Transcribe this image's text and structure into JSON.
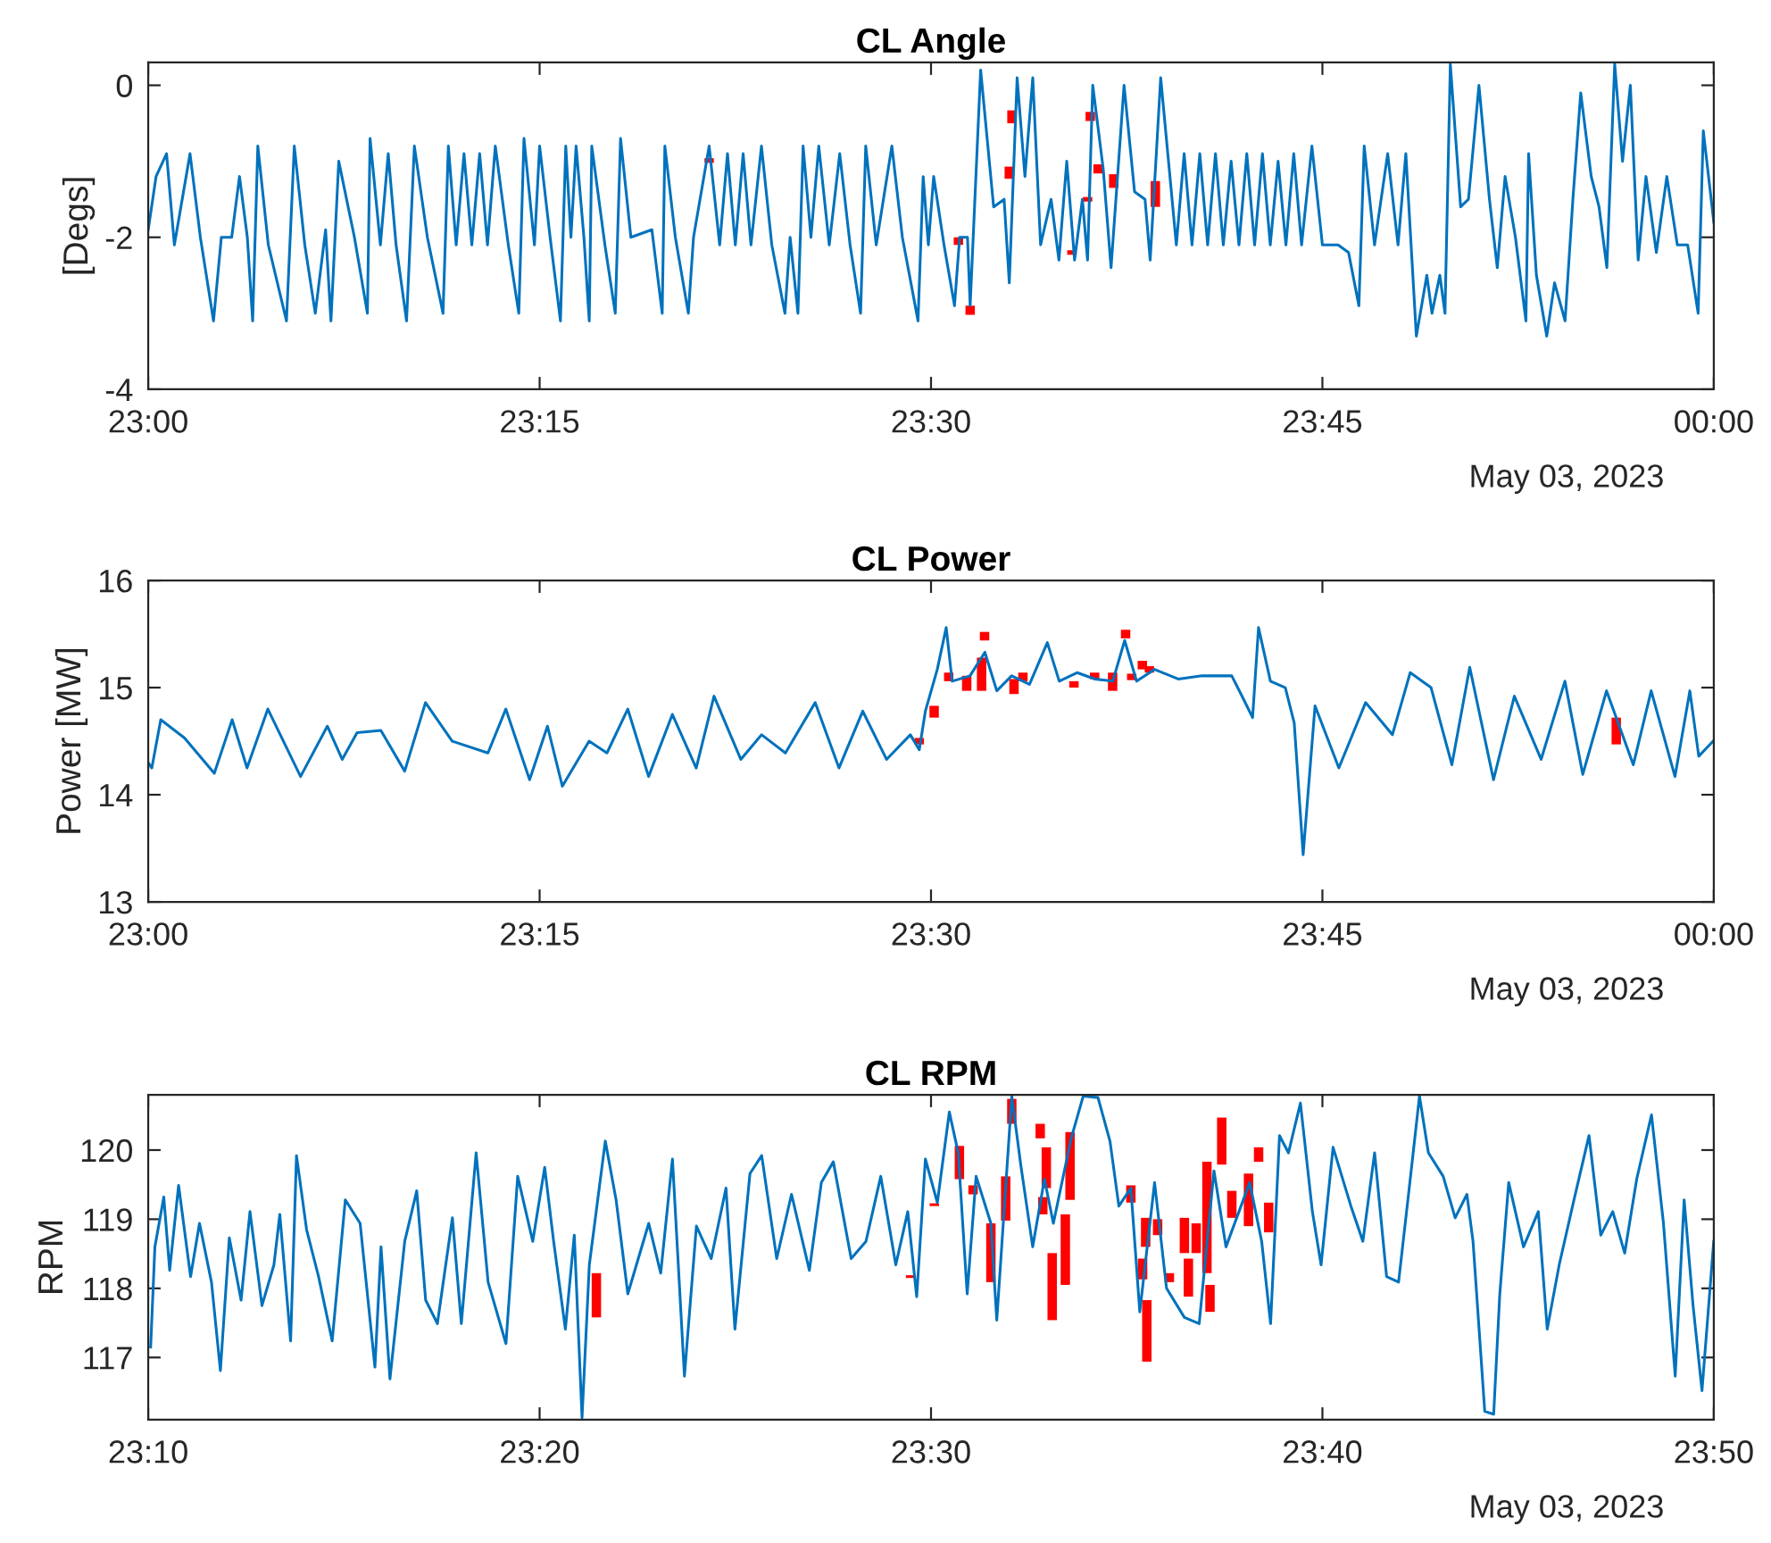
{
  "chart_data": [
    {
      "type": "line",
      "title": "CL Angle",
      "ylabel": "[Degs]",
      "annotations": [
        "May 03, 2023"
      ],
      "xlim": [
        23,
        24
      ],
      "ylim": [
        -4,
        0.3
      ],
      "xticks": [
        {
          "value": 23,
          "label": "23:00"
        },
        {
          "value": 23.25,
          "label": "23:15"
        },
        {
          "value": 23.5,
          "label": "23:30"
        },
        {
          "value": 23.75,
          "label": "23:45"
        },
        {
          "value": 24,
          "label": "00:00"
        }
      ],
      "yticks": [
        -4,
        -2,
        0
      ],
      "series": [
        {
          "color": "#0072bd",
          "x": [
            23.0,
            23.005,
            23.0117,
            23.0167,
            23.0267,
            23.0333,
            23.0417,
            23.0467,
            23.0533,
            23.0583,
            23.0633,
            23.0667,
            23.07,
            23.0767,
            23.0883,
            23.0933,
            23.1,
            23.1067,
            23.1133,
            23.1167,
            23.1217,
            23.1317,
            23.14,
            23.1417,
            23.1483,
            23.1533,
            23.1583,
            23.165,
            23.17,
            23.1783,
            23.1883,
            23.1917,
            23.1967,
            23.2017,
            23.2067,
            23.2117,
            23.2167,
            23.2217,
            23.23,
            23.2367,
            23.24,
            23.2467,
            23.25,
            23.2567,
            23.2633,
            23.2667,
            23.27,
            23.2733,
            23.2783,
            23.2817,
            23.2833,
            23.2917,
            23.2983,
            23.3017,
            23.3083,
            23.3217,
            23.3283,
            23.33,
            23.3367,
            23.345,
            23.3483,
            23.3583,
            23.365,
            23.37,
            23.375,
            23.38,
            23.385,
            23.3917,
            23.3983,
            23.4067,
            23.41,
            23.415,
            23.4183,
            23.4233,
            23.4283,
            23.435,
            23.4417,
            23.4483,
            23.455,
            23.4583,
            23.465,
            23.475,
            23.4817,
            23.4917,
            23.495,
            23.4983,
            23.5017,
            23.5083,
            23.515,
            23.5183,
            23.5233,
            23.525,
            23.5317,
            23.54,
            23.5467,
            23.55,
            23.555,
            23.56,
            23.565,
            23.57,
            23.5767,
            23.5817,
            23.5867,
            23.5917,
            23.5967,
            23.6,
            23.6033,
            23.61,
            23.615,
            23.6233,
            23.63,
            23.6367,
            23.64,
            23.6467,
            23.6517,
            23.6567,
            23.6617,
            23.6667,
            23.6717,
            23.6767,
            23.6817,
            23.6867,
            23.6917,
            23.6967,
            23.7017,
            23.7067,
            23.7117,
            23.7167,
            23.7217,
            23.7267,
            23.7317,
            23.7367,
            23.7433,
            23.75,
            23.76,
            23.7667,
            23.7733,
            23.7767,
            23.7833,
            23.7917,
            23.7983,
            23.8033,
            23.81,
            23.8167,
            23.82,
            23.825,
            23.8283,
            23.8317,
            23.8383,
            23.8433,
            23.85,
            23.8567,
            23.8617,
            23.8667,
            23.8733,
            23.88,
            23.8817,
            23.8867,
            23.8933,
            23.8983,
            23.905,
            23.91,
            23.915,
            23.9217,
            23.9267,
            23.9317,
            23.9367,
            23.9417,
            23.9467,
            23.9517,
            23.9567,
            23.9633,
            23.97,
            23.9767,
            23.9833,
            23.99,
            23.9933,
            24.0
          ],
          "values": [
            -1.9,
            -1.2,
            -0.9,
            -2.1,
            -0.9,
            -2.0,
            -3.1,
            -2.0,
            -2.0,
            -1.2,
            -2.0,
            -3.1,
            -0.8,
            -2.1,
            -3.1,
            -0.8,
            -2.1,
            -3.0,
            -1.9,
            -3.1,
            -1.0,
            -2.0,
            -3.0,
            -0.7,
            -2.1,
            -0.9,
            -2.1,
            -3.1,
            -0.8,
            -2.0,
            -3.0,
            -0.8,
            -2.1,
            -0.9,
            -2.1,
            -0.9,
            -2.1,
            -0.8,
            -2.1,
            -3.0,
            -0.7,
            -2.1,
            -0.8,
            -2.0,
            -3.1,
            -0.8,
            -2.0,
            -0.8,
            -2.0,
            -3.1,
            -0.8,
            -2.1,
            -3.0,
            -0.7,
            -2.0,
            -1.9,
            -3.0,
            -0.8,
            -2.0,
            -3.0,
            -2.0,
            -0.8,
            -2.1,
            -0.9,
            -2.1,
            -0.9,
            -2.1,
            -0.8,
            -2.1,
            -3.0,
            -2.0,
            -3.0,
            -0.8,
            -2.0,
            -0.8,
            -2.1,
            -0.9,
            -2.1,
            -3.0,
            -0.8,
            -2.1,
            -0.8,
            -2.0,
            -3.1,
            -1.2,
            -2.1,
            -1.2,
            -2.1,
            -2.9,
            -2.0,
            -2.0,
            -2.9,
            0.2,
            -1.6,
            -1.5,
            -2.6,
            0.1,
            -1.2,
            0.1,
            -2.1,
            -1.5,
            -2.3,
            -1.0,
            -2.3,
            -1.5,
            -2.3,
            0.0,
            -1.1,
            -2.4,
            0.0,
            -1.4,
            -1.5,
            -2.3,
            0.1,
            -1.0,
            -2.1,
            -0.9,
            -2.1,
            -0.9,
            -2.1,
            -0.9,
            -2.1,
            -1.0,
            -2.1,
            -0.9,
            -2.1,
            -0.9,
            -2.1,
            -1.0,
            -2.1,
            -0.9,
            -2.1,
            -0.8,
            -2.1,
            -2.1,
            -2.2,
            -2.9,
            -0.8,
            -2.1,
            -0.9,
            -2.1,
            -0.9,
            -3.3,
            -2.5,
            -3.0,
            -2.5,
            -3.0,
            0.28,
            -1.6,
            -1.5,
            0.0,
            -1.5,
            -2.4,
            -1.2,
            -2.0,
            -3.1,
            -0.9,
            -2.5,
            -3.3,
            -2.6,
            -3.1,
            -1.5,
            -0.1,
            -1.2,
            -1.6,
            -2.4,
            0.28,
            -1.0,
            0.0,
            -2.3,
            -1.2,
            -2.2,
            -1.2,
            -2.1,
            -2.1,
            -3.0,
            -0.6,
            -1.8
          ]
        },
        {
          "type": "bar",
          "color": "#ff0000",
          "x": [
            23.3583,
            23.5175,
            23.525,
            23.55,
            23.5517,
            23.59,
            23.6,
            23.6017,
            23.6067,
            23.6167,
            23.6433
          ],
          "base": [
            -1.02,
            -2.1,
            -3.02,
            -1.23,
            -0.5,
            -2.23,
            -1.53,
            -0.47,
            -1.16,
            -1.35,
            -1.6
          ],
          "values": [
            0.06,
            0.1,
            0.12,
            0.16,
            0.17,
            0.06,
            0.06,
            0.12,
            0.12,
            0.18,
            0.34
          ]
        }
      ]
    },
    {
      "type": "line",
      "title": "CL Power",
      "ylabel": "Power [MW]",
      "annotations": [
        "May 03, 2023"
      ],
      "xlim": [
        23,
        24
      ],
      "ylim": [
        13,
        16
      ],
      "xticks": [
        {
          "value": 23,
          "label": "23:00"
        },
        {
          "value": 23.25,
          "label": "23:15"
        },
        {
          "value": 23.5,
          "label": "23:30"
        },
        {
          "value": 23.75,
          "label": "23:45"
        },
        {
          "value": 24,
          "label": "00:00"
        }
      ],
      "yticks": [
        13,
        14,
        15,
        16
      ],
      "series": [
        {
          "color": "#0072bd",
          "x": [
            23.0,
            23.0023,
            23.008,
            23.0232,
            23.0422,
            23.0536,
            23.0631,
            23.0764,
            23.0973,
            23.1144,
            23.1239,
            23.1334,
            23.1486,
            23.1638,
            23.1771,
            23.1942,
            23.217,
            23.2284,
            23.2436,
            23.255,
            23.2645,
            23.2816,
            23.293,
            23.3063,
            23.3196,
            23.3348,
            23.35,
            23.3614,
            23.3785,
            23.3918,
            23.407,
            23.426,
            23.4412,
            23.4564,
            23.4716,
            23.4868,
            23.4925,
            23.4964,
            23.504,
            23.5097,
            23.5135,
            23.5249,
            23.5344,
            23.542,
            23.5515,
            23.5629,
            23.5743,
            23.5819,
            23.5933,
            23.6047,
            23.6161,
            23.6237,
            23.6313,
            23.6427,
            23.6579,
            23.6731,
            23.6921,
            23.6997,
            23.7054,
            23.7092,
            23.7168,
            23.7263,
            23.732,
            23.7377,
            23.7453,
            23.7605,
            23.7776,
            23.7947,
            23.8061,
            23.8194,
            23.8327,
            23.8441,
            23.8593,
            23.8726,
            23.8897,
            23.9049,
            23.9163,
            23.9315,
            23.9486,
            23.96,
            23.9752,
            23.9847,
            23.9904,
            23.9995
          ],
          "values": [
            14.3,
            14.25,
            14.7,
            14.53,
            14.2,
            14.7,
            14.25,
            14.8,
            14.17,
            14.64,
            14.33,
            14.58,
            14.6,
            14.22,
            14.86,
            14.5,
            14.39,
            14.8,
            14.14,
            14.64,
            14.08,
            14.5,
            14.39,
            14.8,
            14.17,
            14.75,
            14.25,
            14.92,
            14.33,
            14.56,
            14.39,
            14.86,
            14.25,
            14.78,
            14.33,
            14.56,
            14.42,
            14.78,
            15.17,
            15.56,
            15.06,
            15.11,
            15.33,
            14.97,
            15.11,
            15.03,
            15.42,
            15.06,
            15.14,
            15.08,
            15.06,
            15.44,
            15.06,
            15.17,
            15.08,
            15.11,
            15.11,
            14.89,
            14.72,
            15.56,
            15.06,
            15.0,
            14.67,
            13.44,
            14.83,
            14.25,
            14.86,
            14.56,
            15.14,
            15.0,
            14.28,
            15.19,
            14.14,
            14.92,
            14.33,
            15.06,
            14.19,
            14.97,
            14.28,
            14.97,
            14.17,
            14.97,
            14.36,
            14.5
          ]
        },
        {
          "type": "bar",
          "color": "#ff0000",
          "x": [
            23.4925,
            23.502,
            23.5113,
            23.5228,
            23.5323,
            23.5342,
            23.553,
            23.5587,
            23.5913,
            23.6045,
            23.616,
            23.6243,
            23.6282,
            23.635,
            23.6395,
            23.9377
          ],
          "base": [
            14.47,
            14.72,
            15.06,
            14.97,
            14.97,
            15.44,
            14.94,
            15.06,
            15.0,
            15.08,
            14.97,
            15.46,
            15.07,
            15.17,
            15.14,
            14.47
          ],
          "values": [
            0.06,
            0.11,
            0.08,
            0.14,
            0.31,
            0.08,
            0.14,
            0.08,
            0.06,
            0.06,
            0.17,
            0.08,
            0.06,
            0.08,
            0.06,
            0.25
          ]
        }
      ]
    },
    {
      "type": "line",
      "title": "CL RPM",
      "ylabel": "RPM",
      "annotations": [
        "May 03, 2023"
      ],
      "xlim": [
        23.16667,
        23.83333
      ],
      "ylim": [
        116.1,
        120.8
      ],
      "xticks": [
        {
          "value": 23.16667,
          "label": "23:10"
        },
        {
          "value": 23.33333,
          "label": "23:20"
        },
        {
          "value": 23.5,
          "label": "23:30"
        },
        {
          "value": 23.66667,
          "label": "23:40"
        },
        {
          "value": 23.83333,
          "label": "23:50"
        }
      ],
      "yticks": [
        117,
        118,
        119,
        120
      ],
      "series": [
        {
          "color": "#0072bd",
          "x": [
            23.1677,
            23.1695,
            23.1733,
            23.1758,
            23.1796,
            23.1847,
            23.1885,
            23.1936,
            23.1974,
            23.2012,
            23.2062,
            23.21,
            23.2151,
            23.2202,
            23.2227,
            23.2273,
            23.2298,
            23.2341,
            23.2392,
            23.245,
            23.2506,
            23.2569,
            23.2632,
            23.2658,
            23.2696,
            23.2759,
            23.281,
            23.2848,
            23.2898,
            23.2962,
            23.3,
            23.3063,
            23.3114,
            23.319,
            23.324,
            23.3304,
            23.3355,
            23.3393,
            23.3443,
            23.3481,
            23.3514,
            23.3545,
            23.3613,
            23.3659,
            23.3709,
            23.3798,
            23.3849,
            23.3899,
            23.395,
            23.4001,
            23.4064,
            23.4127,
            23.4165,
            23.4229,
            23.4279,
            23.4343,
            23.4406,
            23.4482,
            23.4533,
            23.4584,
            23.466,
            23.4723,
            23.4786,
            23.485,
            23.4901,
            23.4939,
            23.4976,
            23.5027,
            23.5078,
            23.5116,
            23.5154,
            23.5192,
            23.5255,
            23.528,
            23.5344,
            23.5382,
            23.5433,
            23.5483,
            23.5521,
            23.5597,
            23.5648,
            23.5711,
            23.5762,
            23.58,
            23.5851,
            23.5889,
            23.5952,
            23.6003,
            23.6079,
            23.6142,
            23.6205,
            23.6256,
            23.6357,
            23.6408,
            23.6446,
            23.6484,
            23.6522,
            23.6573,
            23.6624,
            23.6661,
            23.6712,
            23.6788,
            23.6839,
            23.6889,
            23.694,
            23.6991,
            23.7042,
            23.708,
            23.7118,
            23.7181,
            23.7232,
            23.7282,
            23.7308,
            23.7358,
            23.7396,
            23.7422,
            23.746,
            23.7523,
            23.7586,
            23.7624,
            23.7675,
            23.7738,
            23.7802,
            23.7852,
            23.7903,
            23.7954,
            23.8005,
            23.8068,
            23.8119,
            23.8169,
            23.8207,
            23.8245,
            23.8283,
            23.8333
          ],
          "values": [
            117.15,
            118.6,
            119.32,
            118.26,
            119.49,
            118.17,
            118.94,
            118.09,
            116.81,
            118.73,
            117.83,
            119.11,
            117.75,
            118.34,
            119.07,
            117.24,
            119.92,
            118.85,
            118.17,
            117.24,
            119.28,
            118.94,
            116.86,
            118.6,
            116.69,
            118.68,
            119.41,
            117.83,
            117.49,
            119.02,
            117.49,
            119.96,
            118.09,
            117.2,
            119.62,
            118.68,
            119.75,
            118.68,
            117.41,
            118.77,
            116.13,
            118.34,
            120.13,
            119.28,
            117.92,
            118.94,
            118.22,
            119.87,
            116.73,
            118.9,
            118.43,
            119.45,
            117.41,
            119.66,
            119.92,
            118.43,
            119.36,
            118.26,
            119.53,
            119.83,
            118.43,
            118.68,
            119.62,
            118.34,
            119.11,
            117.88,
            119.87,
            119.24,
            120.55,
            119.96,
            117.92,
            119.62,
            118.94,
            117.54,
            120.78,
            119.79,
            118.6,
            119.58,
            118.94,
            120.17,
            120.78,
            120.76,
            120.13,
            119.19,
            119.45,
            117.66,
            119.53,
            118.0,
            117.58,
            117.49,
            119.7,
            118.6,
            119.53,
            118.68,
            117.49,
            120.21,
            119.96,
            120.68,
            119.11,
            118.34,
            120.04,
            119.19,
            118.68,
            119.96,
            118.17,
            118.09,
            119.62,
            120.78,
            119.96,
            119.62,
            119.02,
            119.36,
            118.68,
            116.22,
            116.18,
            117.92,
            119.53,
            118.6,
            119.11,
            117.41,
            118.34,
            119.28,
            120.21,
            118.77,
            119.11,
            118.51,
            119.58,
            120.51,
            118.94,
            116.73,
            119.28,
            117.75,
            116.52,
            118.68
          ]
        },
        {
          "type": "bar",
          "color": "#ff0000",
          "x": [
            23.3575,
            23.4913,
            23.5014,
            23.5121,
            23.5179,
            23.5255,
            23.5318,
            23.5344,
            23.5465,
            23.5476,
            23.5491,
            23.5516,
            23.5572,
            23.5592,
            23.5851,
            23.5901,
            23.5914,
            23.5919,
            23.5965,
            23.6015,
            23.6079,
            23.6096,
            23.6129,
            23.6175,
            23.6188,
            23.6238,
            23.6281,
            23.6352,
            23.6395,
            23.6438
          ],
          "base": [
            117.58,
            118.15,
            119.19,
            119.58,
            119.36,
            118.09,
            118.98,
            120.38,
            120.17,
            119.07,
            119.45,
            117.54,
            118.05,
            119.28,
            119.24,
            118.13,
            118.6,
            116.94,
            118.77,
            118.09,
            118.51,
            117.88,
            118.51,
            118.22,
            117.66,
            119.79,
            119.02,
            118.9,
            119.83,
            118.81
          ],
          "values": [
            0.64,
            0.04,
            0.04,
            0.48,
            0.13,
            0.85,
            0.64,
            0.36,
            0.21,
            0.25,
            0.59,
            0.97,
            1.02,
            0.98,
            0.25,
            0.3,
            0.42,
            0.89,
            0.23,
            0.13,
            0.51,
            0.55,
            0.43,
            1.61,
            0.39,
            0.68,
            0.39,
            0.76,
            0.21,
            0.43
          ]
        }
      ]
    }
  ]
}
